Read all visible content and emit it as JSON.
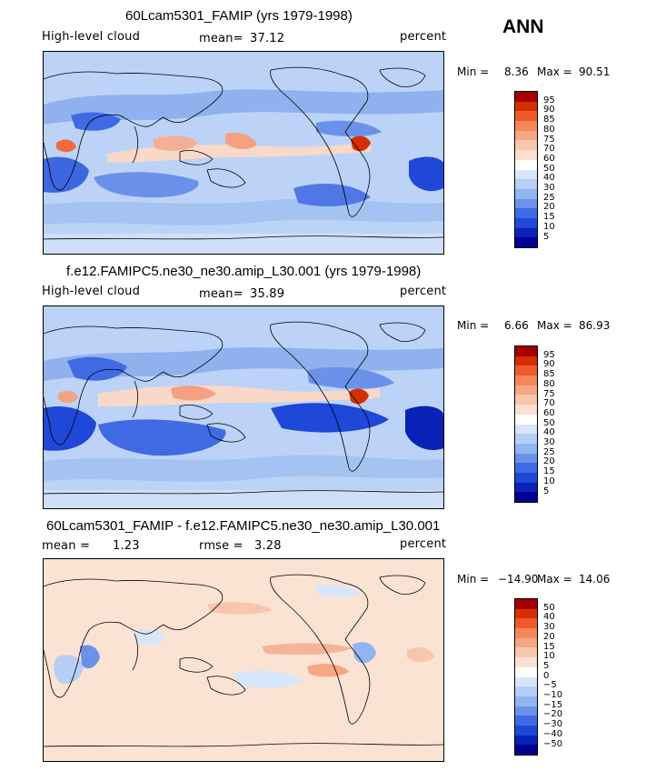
{
  "season": "ANN",
  "panels": [
    {
      "title": "60Lcam5301_FAMIP (yrs 1979-1998)",
      "left_label": "High-level cloud",
      "stat1_label": "mean=",
      "stat1_value": "37.12",
      "units": "percent",
      "min_label": "Min =",
      "min_value": "8.36",
      "max_label": "Max =",
      "max_value": "90.51",
      "base_color": "#bcd3f7",
      "cbar_colors": [
        "#a50000",
        "#d62e00",
        "#ef5a2c",
        "#f5875c",
        "#f7a783",
        "#f8c6ad",
        "#fbe0d2",
        "#ffffff",
        "#d8e6fb",
        "#b5cff6",
        "#91b5f0",
        "#6b92ea",
        "#3f6ae4",
        "#1f47d8",
        "#0a22b8",
        "#000090"
      ],
      "cbar_ticks": [
        "95",
        "90",
        "85",
        "80",
        "75",
        "70",
        "60",
        "50",
        "40",
        "30",
        "25",
        "20",
        "15",
        "10",
        "5"
      ]
    },
    {
      "title": "f.e12.FAMIPC5.ne30_ne30.amip_L30.001 (yrs 1979-1998)",
      "left_label": "High-level cloud",
      "stat1_label": "mean=",
      "stat1_value": "35.89",
      "units": "percent",
      "min_label": "Min =",
      "min_value": "6.66",
      "max_label": "Max =",
      "max_value": "86.93",
      "base_color": "#bcd3f7",
      "cbar_colors": [
        "#a50000",
        "#d62e00",
        "#ef5a2c",
        "#f5875c",
        "#f7a783",
        "#f8c6ad",
        "#fbe0d2",
        "#ffffff",
        "#d8e6fb",
        "#b5cff6",
        "#91b5f0",
        "#6b92ea",
        "#3f6ae4",
        "#1f47d8",
        "#0a22b8",
        "#000090"
      ],
      "cbar_ticks": [
        "95",
        "90",
        "85",
        "80",
        "75",
        "70",
        "60",
        "50",
        "40",
        "30",
        "25",
        "20",
        "15",
        "10",
        "5"
      ]
    },
    {
      "title": "60Lcam5301_FAMIP - f.e12.FAMIPC5.ne30_ne30.amip_L30.001",
      "left_label": "mean =",
      "left_value": "1.23",
      "stat1_label": "rmse =",
      "stat1_value": "3.28",
      "units": "percent",
      "min_label": "Min =",
      "min_value": "−14.90",
      "max_label": "Max =",
      "max_value": "14.06",
      "base_color": "#fbe3d4",
      "cbar_colors": [
        "#a50000",
        "#d62e00",
        "#ef5a2c",
        "#f5875c",
        "#f7a783",
        "#f8c6ad",
        "#fbe0d2",
        "#ffffff",
        "#d8e6fb",
        "#b5cff6",
        "#91b5f0",
        "#6b92ea",
        "#3f6ae4",
        "#1f47d8",
        "#0a22b8",
        "#000090"
      ],
      "cbar_ticks": [
        "50",
        "40",
        "30",
        "20",
        "15",
        "10",
        "5",
        "0",
        "−5",
        "−10",
        "−15",
        "−20",
        "−30",
        "−40",
        "−50"
      ]
    }
  ]
}
